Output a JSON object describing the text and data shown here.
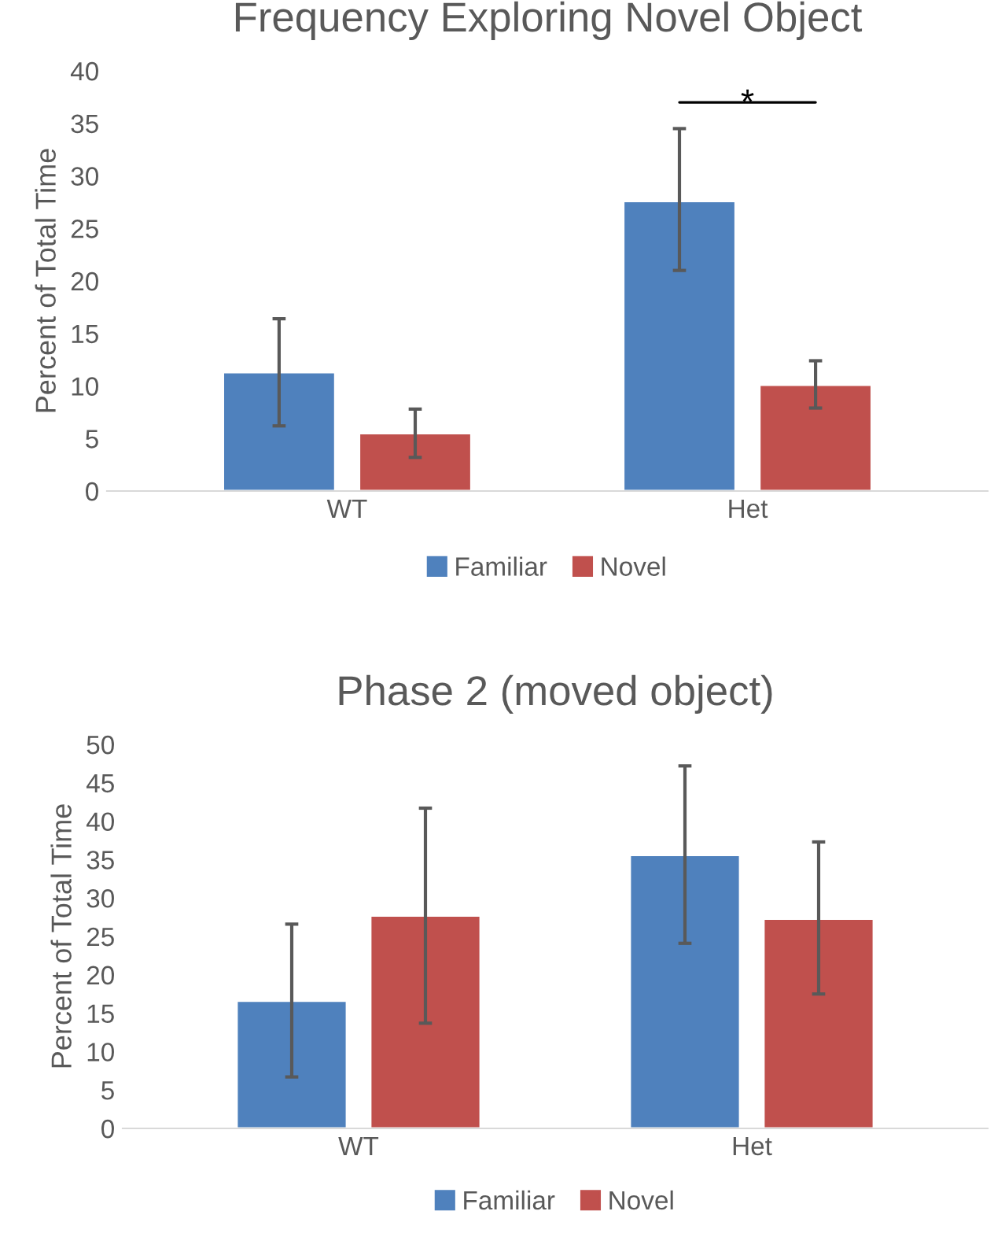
{
  "chart_data": [
    {
      "type": "bar",
      "title": "Frequency Exploring Novel Object",
      "ylabel": "Percent of Total Time",
      "categories": [
        "WT",
        "Het"
      ],
      "series": [
        {
          "name": "Familiar",
          "color": "#4f81bd",
          "values": [
            11.3,
            27.6
          ],
          "errors": [
            [
              6.2,
              16.4
            ],
            [
              21.0,
              34.5
            ]
          ]
        },
        {
          "name": "Novel",
          "color": "#c0504d",
          "values": [
            5.5,
            10.1
          ],
          "errors": [
            [
              3.2,
              7.8
            ],
            [
              7.9,
              12.4
            ]
          ]
        }
      ],
      "ylim": [
        0,
        40
      ],
      "yticks": [
        0,
        5,
        10,
        15,
        20,
        25,
        30,
        35,
        40
      ],
      "grid": false,
      "legend": "bottom",
      "annotations": [
        "*"
      ]
    },
    {
      "type": "bar",
      "title": "Phase 2 (moved object)",
      "ylabel": "Percent of Total Time",
      "categories": [
        "WT",
        "Het"
      ],
      "series": [
        {
          "name": "Familiar",
          "color": "#4f81bd",
          "values": [
            16.6,
            35.6
          ],
          "errors": [
            [
              6.7,
              26.6
            ],
            [
              24.1,
              47.2
            ]
          ]
        },
        {
          "name": "Novel",
          "color": "#c0504d",
          "values": [
            27.7,
            27.3
          ],
          "errors": [
            [
              13.7,
              41.7
            ],
            [
              17.5,
              37.3
            ]
          ]
        }
      ],
      "ylim": [
        0,
        50
      ],
      "yticks": [
        0,
        5,
        10,
        15,
        20,
        25,
        30,
        35,
        40,
        45,
        50
      ],
      "grid": false,
      "legend": "bottom"
    }
  ]
}
